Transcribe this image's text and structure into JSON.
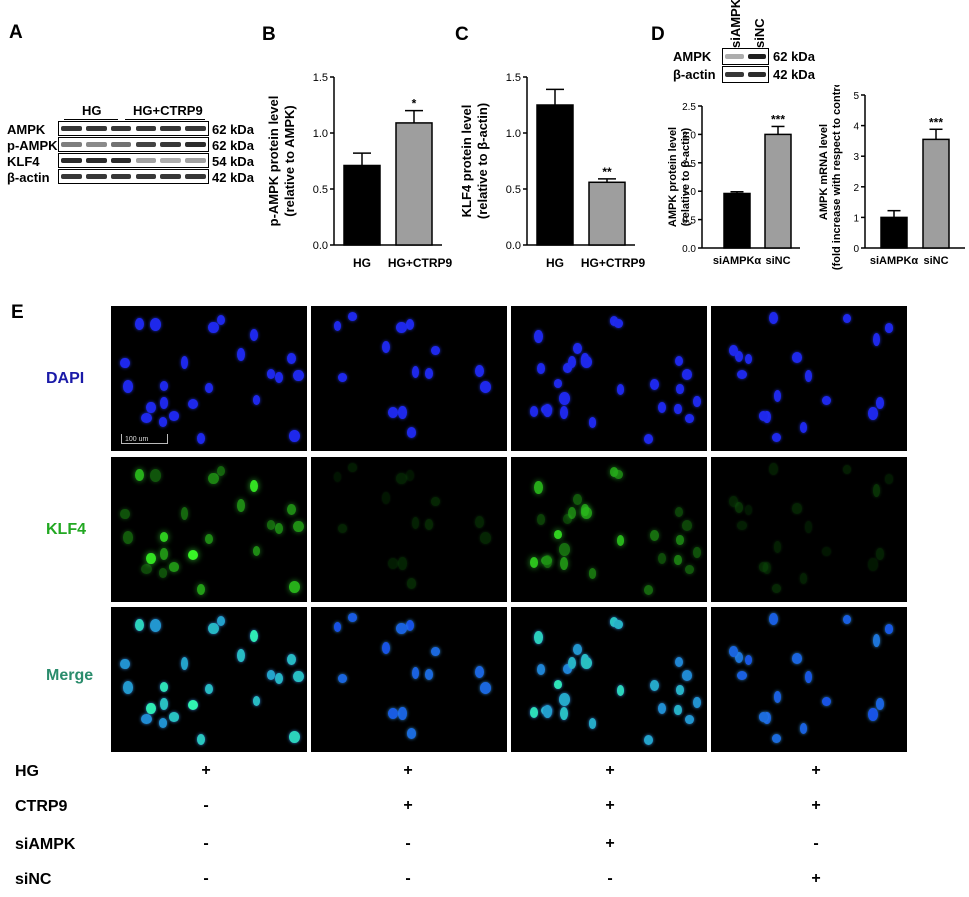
{
  "panel_labels": {
    "A": "A",
    "B": "B",
    "C": "C",
    "D": "D",
    "E": "E"
  },
  "blot_a": {
    "groups": [
      "HG",
      "HG+CTRP9"
    ],
    "rows": [
      {
        "label": "AMPK",
        "mw": "62 kDa",
        "intensities": [
          0.85,
          0.85,
          0.85,
          0.85,
          0.85,
          0.85
        ]
      },
      {
        "label": "p-AMPK",
        "mw": "62 kDa",
        "intensities": [
          0.55,
          0.5,
          0.6,
          0.8,
          0.85,
          0.9
        ]
      },
      {
        "label": "KLF4",
        "mw": "54 kDa",
        "intensities": [
          0.9,
          0.9,
          0.9,
          0.4,
          0.35,
          0.4
        ]
      },
      {
        "label": "β-actin",
        "mw": "42 kDa",
        "intensities": [
          0.85,
          0.85,
          0.85,
          0.85,
          0.85,
          0.85
        ]
      }
    ]
  },
  "blot_d": {
    "columns": [
      "siAMPKα",
      "siNC"
    ],
    "rows": [
      {
        "label": "AMPK",
        "mw": "62 kDa",
        "intensities": [
          0.35,
          0.95
        ]
      },
      {
        "label": "β-actin",
        "mw": "42 kDa",
        "intensities": [
          0.85,
          0.9
        ]
      }
    ]
  },
  "chart_data": [
    {
      "type": "bar",
      "categories": [
        "HG",
        "HG+CTRP9"
      ],
      "values": [
        0.71,
        1.09
      ],
      "errors": [
        0.11,
        0.11
      ],
      "significance": [
        "",
        "*"
      ],
      "colors": [
        "#000000",
        "#9e9e9e"
      ],
      "ylabel": "p-AMPK protein level",
      "ylabel2": "(relative to AMPK)",
      "ylim": [
        0,
        1.5
      ],
      "yticks": [
        "0.0",
        "0.5",
        "1.0",
        "1.5"
      ]
    },
    {
      "type": "bar",
      "categories": [
        "HG",
        "HG+CTRP9"
      ],
      "values": [
        1.25,
        0.56
      ],
      "errors": [
        0.14,
        0.03
      ],
      "significance": [
        "",
        "**"
      ],
      "colors": [
        "#000000",
        "#9e9e9e"
      ],
      "ylabel": "KLF4 protein level",
      "ylabel2": "(relative to β-actin)",
      "ylim": [
        0,
        1.5
      ],
      "yticks": [
        "0.0",
        "0.5",
        "1.0",
        "1.5"
      ]
    },
    {
      "type": "bar",
      "categories": [
        "siAMPKα",
        "siNC"
      ],
      "values": [
        0.96,
        2.0
      ],
      "errors": [
        0.03,
        0.14
      ],
      "significance": [
        "",
        "***"
      ],
      "colors": [
        "#000000",
        "#9e9e9e"
      ],
      "ylabel": "AMPK protein level",
      "ylabel2": "(relative to β-actin)",
      "ylim": [
        0,
        2.5
      ],
      "yticks": [
        "0.0",
        "0.5",
        "1.0",
        "1.5",
        "2.0",
        "2.5"
      ]
    },
    {
      "type": "bar",
      "categories": [
        "siAMPKα",
        "siNC"
      ],
      "values": [
        1.0,
        3.55
      ],
      "errors": [
        0.22,
        0.33
      ],
      "significance": [
        "",
        "***"
      ],
      "colors": [
        "#000000",
        "#9e9e9e"
      ],
      "ylabel": "AMPK mRNA level",
      "ylabel2": "(fold increase with respect to control)",
      "ylim": [
        0,
        5
      ],
      "yticks": [
        "0",
        "1",
        "2",
        "3",
        "4",
        "5"
      ]
    }
  ],
  "microscopy": {
    "row_labels": [
      {
        "text": "DAPI",
        "color": "#1a1aa8"
      },
      {
        "text": "KLF4",
        "color": "#22a822"
      },
      {
        "text": "Merge",
        "color": "#2a8c6c"
      }
    ],
    "scale_bar": "100 um",
    "columns": 4
  },
  "treatments": [
    {
      "label": "HG",
      "values": [
        "+",
        "+",
        "+",
        "+"
      ]
    },
    {
      "label": "CTRP9",
      "values": [
        "-",
        "+",
        "+",
        "+"
      ]
    },
    {
      "label": "siAMPK",
      "values": [
        "-",
        "-",
        "+",
        "-"
      ]
    },
    {
      "label": "siNC",
      "values": [
        "-",
        "-",
        "-",
        "+"
      ]
    }
  ]
}
